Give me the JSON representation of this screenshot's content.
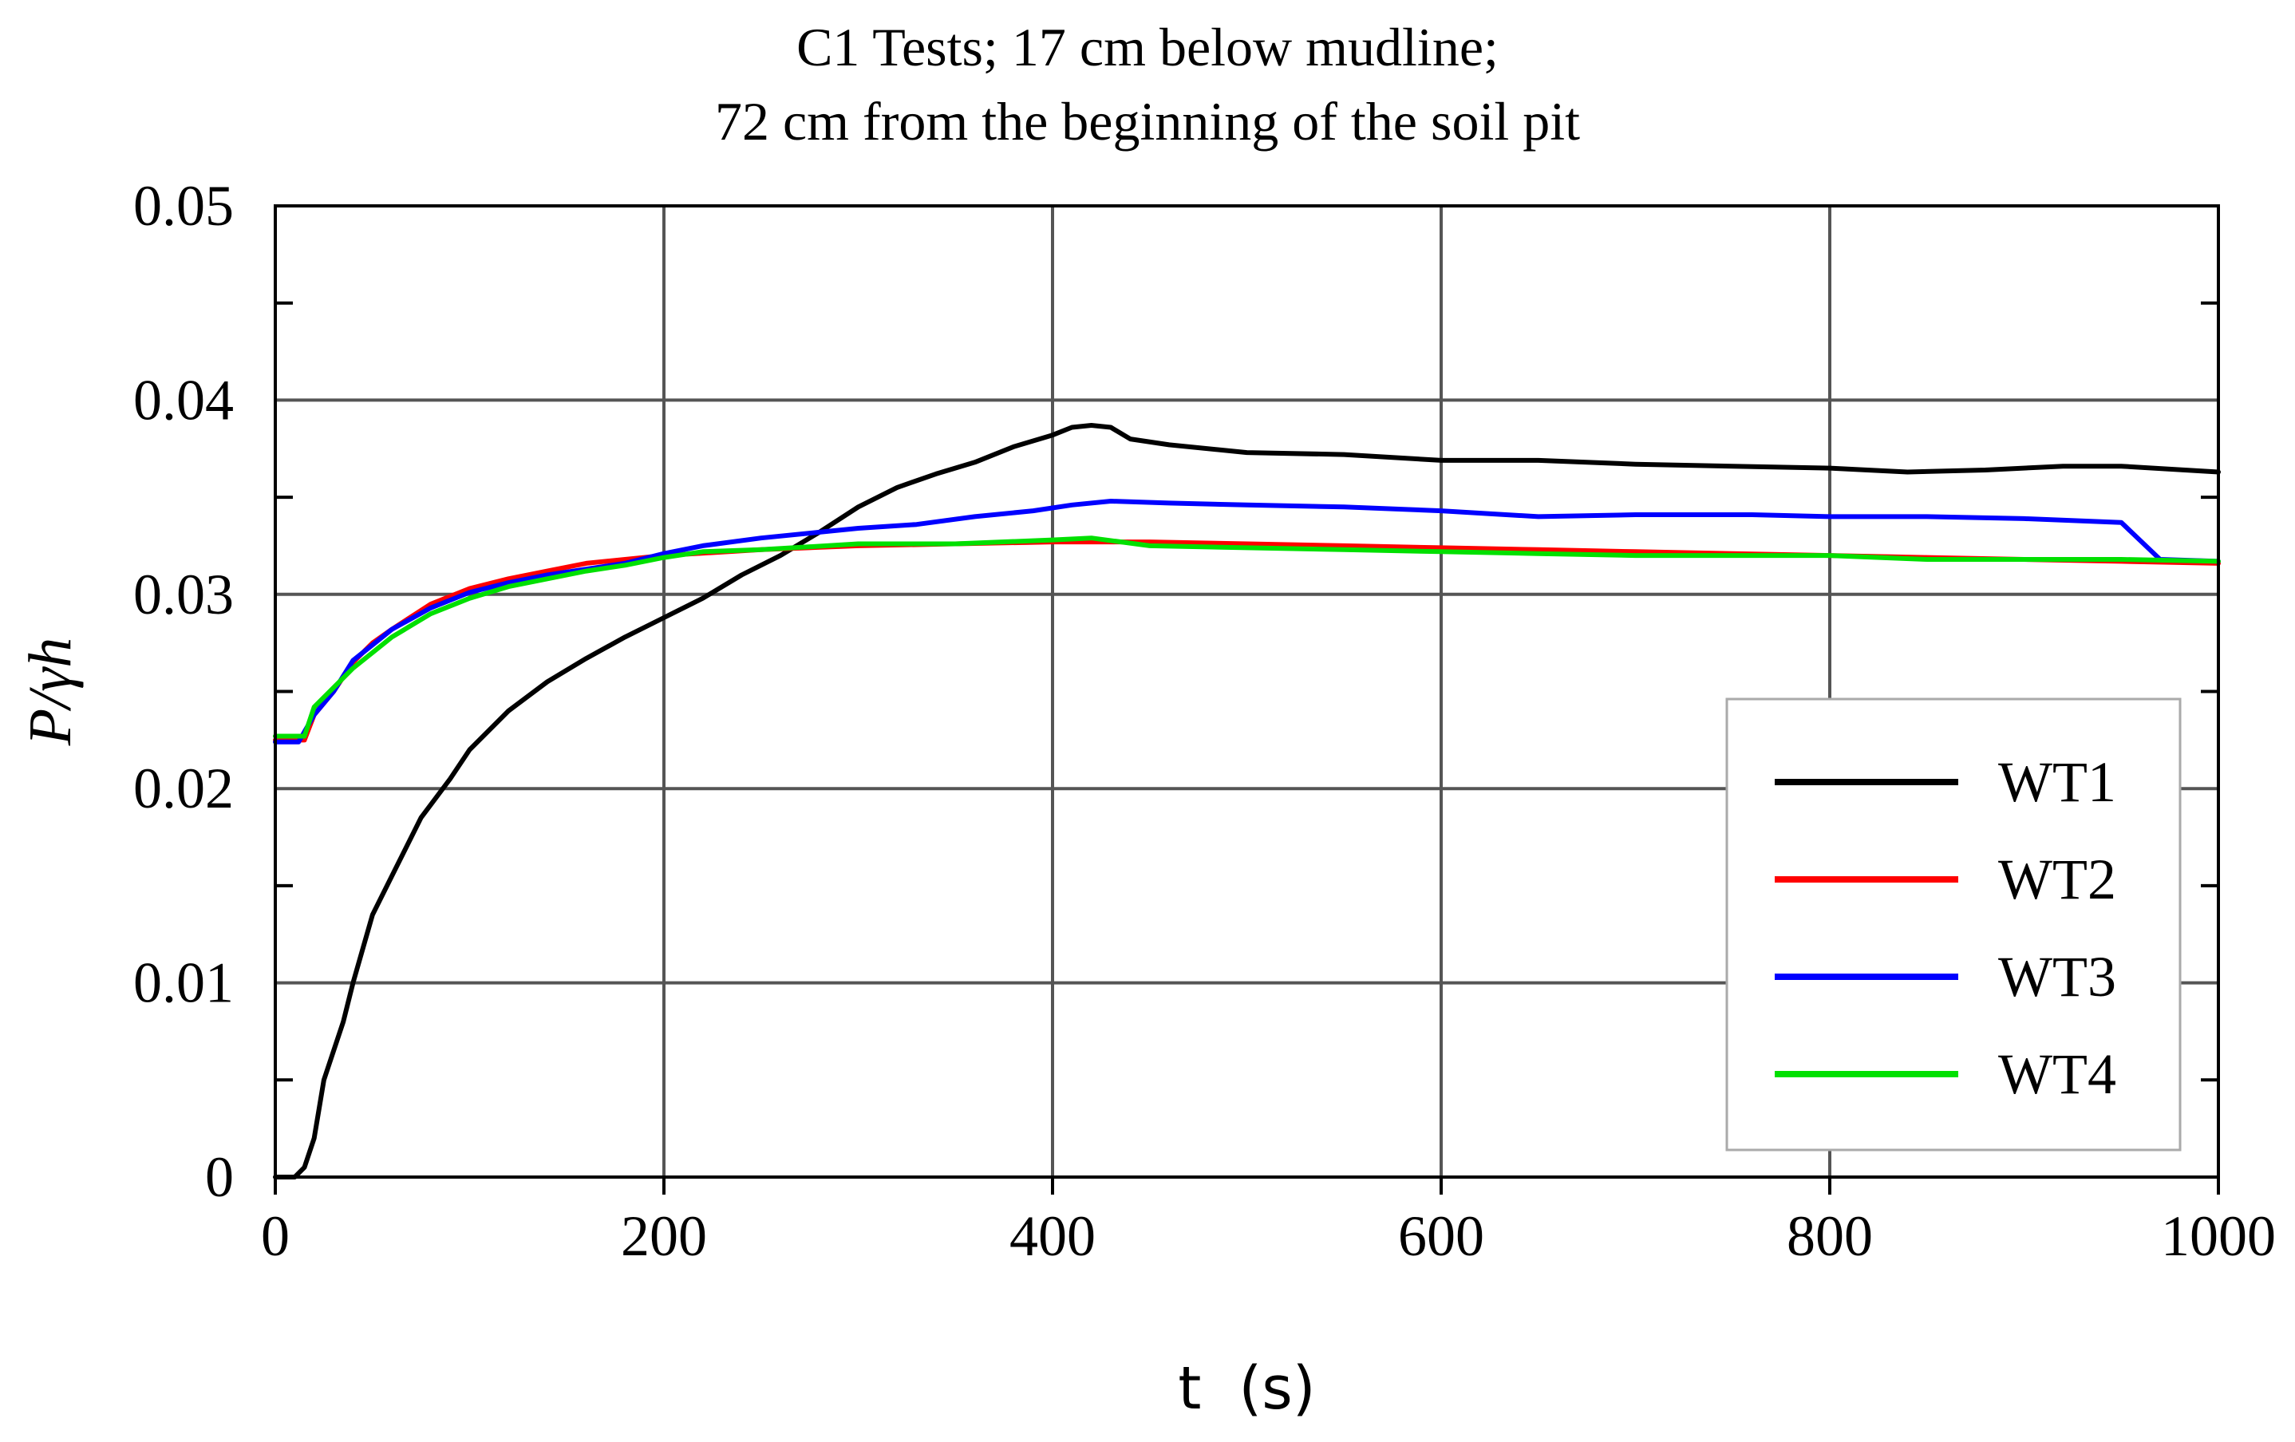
{
  "chart_data": {
    "type": "line",
    "title": [
      "C1 Tests; 17 cm below mudline;",
      "72 cm from the beginning of the soil pit"
    ],
    "xlabel": "t  (s)",
    "ylabel": "P/γh",
    "xlim": [
      0,
      1000
    ],
    "ylim": [
      0,
      0.05
    ],
    "xticks": [
      0,
      200,
      400,
      600,
      800,
      1000
    ],
    "xtick_labels": [
      "0",
      "200",
      "400",
      "600",
      "800",
      "1000"
    ],
    "yticks": [
      0,
      0.01,
      0.02,
      0.03,
      0.04,
      0.05
    ],
    "ytick_labels": [
      "0",
      "0.01",
      "0.02",
      "0.03",
      "0.04",
      "0.05"
    ],
    "grid": true,
    "legend_position": "lower-right",
    "series": [
      {
        "name": "WT1",
        "color": "#000000",
        "points": [
          [
            0,
            0
          ],
          [
            10,
            0
          ],
          [
            15,
            0.0005
          ],
          [
            20,
            0.002
          ],
          [
            25,
            0.005
          ],
          [
            35,
            0.008
          ],
          [
            40,
            0.01
          ],
          [
            50,
            0.0135
          ],
          [
            60,
            0.0155
          ],
          [
            75,
            0.0185
          ],
          [
            90,
            0.0205
          ],
          [
            100,
            0.022
          ],
          [
            120,
            0.024
          ],
          [
            140,
            0.0255
          ],
          [
            160,
            0.0267
          ],
          [
            180,
            0.0278
          ],
          [
            200,
            0.0288
          ],
          [
            220,
            0.0298
          ],
          [
            240,
            0.031
          ],
          [
            260,
            0.032
          ],
          [
            280,
            0.0332
          ],
          [
            300,
            0.0345
          ],
          [
            320,
            0.0355
          ],
          [
            340,
            0.0362
          ],
          [
            360,
            0.0368
          ],
          [
            380,
            0.0376
          ],
          [
            400,
            0.0382
          ],
          [
            410,
            0.0386
          ],
          [
            420,
            0.0387
          ],
          [
            430,
            0.0386
          ],
          [
            440,
            0.038
          ],
          [
            460,
            0.0377
          ],
          [
            500,
            0.0373
          ],
          [
            550,
            0.0372
          ],
          [
            600,
            0.0369
          ],
          [
            650,
            0.0369
          ],
          [
            700,
            0.0367
          ],
          [
            750,
            0.0366
          ],
          [
            800,
            0.0365
          ],
          [
            840,
            0.0363
          ],
          [
            880,
            0.0364
          ],
          [
            920,
            0.0366
          ],
          [
            950,
            0.0366
          ],
          [
            1000,
            0.0363
          ]
        ]
      },
      {
        "name": "WT2",
        "color": "#ff0000",
        "points": [
          [
            0,
            0.0225
          ],
          [
            15,
            0.0225
          ],
          [
            20,
            0.0238
          ],
          [
            30,
            0.025
          ],
          [
            40,
            0.0265
          ],
          [
            50,
            0.0275
          ],
          [
            60,
            0.0282
          ],
          [
            80,
            0.0295
          ],
          [
            100,
            0.0303
          ],
          [
            120,
            0.0308
          ],
          [
            140,
            0.0312
          ],
          [
            160,
            0.0316
          ],
          [
            180,
            0.0318
          ],
          [
            200,
            0.032
          ],
          [
            250,
            0.0323
          ],
          [
            300,
            0.0325
          ],
          [
            350,
            0.0326
          ],
          [
            400,
            0.0327
          ],
          [
            450,
            0.0327
          ],
          [
            500,
            0.0326
          ],
          [
            550,
            0.0325
          ],
          [
            600,
            0.0324
          ],
          [
            650,
            0.0323
          ],
          [
            700,
            0.0322
          ],
          [
            750,
            0.0321
          ],
          [
            800,
            0.032
          ],
          [
            850,
            0.0319
          ],
          [
            900,
            0.0318
          ],
          [
            950,
            0.0317
          ],
          [
            1000,
            0.0316
          ]
        ]
      },
      {
        "name": "WT3",
        "color": "#0000ff",
        "points": [
          [
            0,
            0.0224
          ],
          [
            12,
            0.0224
          ],
          [
            20,
            0.0238
          ],
          [
            30,
            0.025
          ],
          [
            40,
            0.0266
          ],
          [
            50,
            0.0274
          ],
          [
            60,
            0.0282
          ],
          [
            80,
            0.0293
          ],
          [
            100,
            0.0301
          ],
          [
            120,
            0.0306
          ],
          [
            140,
            0.031
          ],
          [
            160,
            0.0313
          ],
          [
            180,
            0.0316
          ],
          [
            200,
            0.0321
          ],
          [
            220,
            0.0325
          ],
          [
            250,
            0.0329
          ],
          [
            280,
            0.0332
          ],
          [
            300,
            0.0334
          ],
          [
            330,
            0.0336
          ],
          [
            360,
            0.034
          ],
          [
            390,
            0.0343
          ],
          [
            410,
            0.0346
          ],
          [
            430,
            0.0348
          ],
          [
            460,
            0.0347
          ],
          [
            500,
            0.0346
          ],
          [
            550,
            0.0345
          ],
          [
            600,
            0.0343
          ],
          [
            650,
            0.034
          ],
          [
            700,
            0.0341
          ],
          [
            760,
            0.0341
          ],
          [
            800,
            0.034
          ],
          [
            850,
            0.034
          ],
          [
            900,
            0.0339
          ],
          [
            950,
            0.0337
          ],
          [
            970,
            0.0318
          ],
          [
            1000,
            0.0317
          ]
        ]
      },
      {
        "name": "WT4",
        "color": "#00e000",
        "points": [
          [
            0,
            0.0227
          ],
          [
            15,
            0.0227
          ],
          [
            20,
            0.0242
          ],
          [
            30,
            0.0252
          ],
          [
            40,
            0.0262
          ],
          [
            50,
            0.027
          ],
          [
            60,
            0.0278
          ],
          [
            80,
            0.029
          ],
          [
            100,
            0.0298
          ],
          [
            120,
            0.0304
          ],
          [
            140,
            0.0308
          ],
          [
            160,
            0.0312
          ],
          [
            180,
            0.0315
          ],
          [
            200,
            0.0319
          ],
          [
            220,
            0.0322
          ],
          [
            250,
            0.0323
          ],
          [
            300,
            0.0326
          ],
          [
            350,
            0.0326
          ],
          [
            400,
            0.0328
          ],
          [
            420,
            0.0329
          ],
          [
            450,
            0.0325
          ],
          [
            500,
            0.0324
          ],
          [
            550,
            0.0323
          ],
          [
            600,
            0.0322
          ],
          [
            650,
            0.0321
          ],
          [
            700,
            0.032
          ],
          [
            750,
            0.032
          ],
          [
            800,
            0.032
          ],
          [
            850,
            0.0318
          ],
          [
            900,
            0.0318
          ],
          [
            950,
            0.0318
          ],
          [
            1000,
            0.0317
          ]
        ]
      }
    ]
  }
}
